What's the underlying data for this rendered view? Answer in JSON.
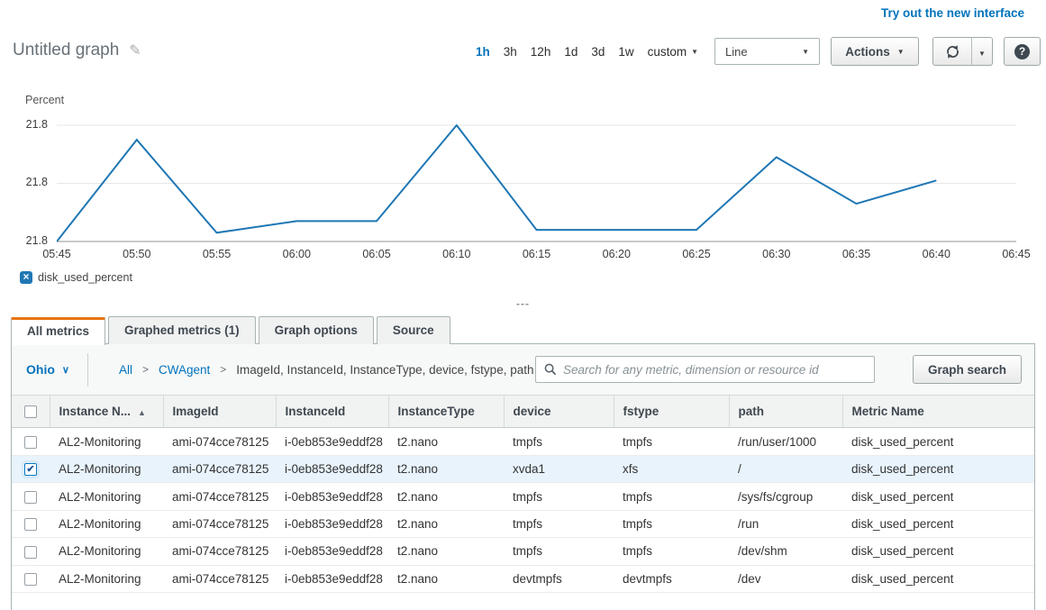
{
  "header": {
    "new_interface_link": "Try out the new interface",
    "title": "Untitled graph",
    "time_ranges": [
      "1h",
      "3h",
      "12h",
      "1d",
      "3d",
      "1w"
    ],
    "active_time_range": "1h",
    "custom_label": "custom",
    "chart_type_select": "Line",
    "actions_label": "Actions"
  },
  "icons": {
    "sort_asc": "▲",
    "caret_down": "▼",
    "check": "✔",
    "legend_remove": "×",
    "region_chevron": "∨",
    "help": "?",
    "pencil": "✎",
    "breadcrumb_sep": ">"
  },
  "chart_data": {
    "type": "line",
    "title": "Untitled graph",
    "ylabel": "Percent",
    "xlabel": "",
    "grid": true,
    "legend_position": "bottom-left",
    "y_tick_labels": [
      "21.8",
      "21.8",
      "21.8"
    ],
    "ylim": [
      21.76,
      21.8
    ],
    "x_ticks": [
      "05:45",
      "05:50",
      "05:55",
      "06:00",
      "06:05",
      "06:10",
      "06:15",
      "06:20",
      "06:25",
      "06:30",
      "06:35",
      "06:40",
      "06:45"
    ],
    "series": [
      {
        "name": "disk_used_percent",
        "color": "#1f77b4",
        "x": [
          "05:45",
          "05:50",
          "05:55",
          "06:00",
          "06:05",
          "06:10",
          "06:15",
          "06:20",
          "06:25",
          "06:30",
          "06:35",
          "06:40"
        ],
        "values": [
          21.76,
          21.795,
          21.763,
          21.767,
          21.767,
          21.8,
          21.764,
          21.764,
          21.764,
          21.789,
          21.773,
          21.781
        ]
      }
    ]
  },
  "legend": {
    "label": "disk_used_percent"
  },
  "resize_handle_label": "---",
  "tabs": [
    {
      "label": "All metrics",
      "active": true
    },
    {
      "label": "Graphed metrics (1)",
      "active": false
    },
    {
      "label": "Graph options",
      "active": false
    },
    {
      "label": "Source",
      "active": false
    }
  ],
  "metrics_panel": {
    "region": "Ohio",
    "breadcrumb": [
      "All",
      "CWAgent",
      "ImageId, InstanceId, InstanceType, device, fstype, path"
    ],
    "search_placeholder": "Search for any metric, dimension or resource id",
    "graph_search_label": "Graph search",
    "table": {
      "columns": [
        "Instance N...",
        "ImageId",
        "InstanceId",
        "InstanceType",
        "device",
        "fstype",
        "path",
        "Metric Name"
      ],
      "sort_column": "Instance N...",
      "sort_direction": "asc",
      "rows": [
        {
          "checked": false,
          "cells": [
            "AL2-Monitoring",
            "ami-074cce78125",
            "i-0eb853e9eddf28",
            "t2.nano",
            "tmpfs",
            "tmpfs",
            "/run/user/1000",
            "disk_used_percent"
          ]
        },
        {
          "checked": true,
          "cells": [
            "AL2-Monitoring",
            "ami-074cce78125",
            "i-0eb853e9eddf28",
            "t2.nano",
            "xvda1",
            "xfs",
            "/",
            "disk_used_percent"
          ]
        },
        {
          "checked": false,
          "cells": [
            "AL2-Monitoring",
            "ami-074cce78125",
            "i-0eb853e9eddf28",
            "t2.nano",
            "tmpfs",
            "tmpfs",
            "/sys/fs/cgroup",
            "disk_used_percent"
          ]
        },
        {
          "checked": false,
          "cells": [
            "AL2-Monitoring",
            "ami-074cce78125",
            "i-0eb853e9eddf28",
            "t2.nano",
            "tmpfs",
            "tmpfs",
            "/run",
            "disk_used_percent"
          ]
        },
        {
          "checked": false,
          "cells": [
            "AL2-Monitoring",
            "ami-074cce78125",
            "i-0eb853e9eddf28",
            "t2.nano",
            "tmpfs",
            "tmpfs",
            "/dev/shm",
            "disk_used_percent"
          ]
        },
        {
          "checked": false,
          "cells": [
            "AL2-Monitoring",
            "ami-074cce78125",
            "i-0eb853e9eddf28",
            "t2.nano",
            "devtmpfs",
            "devtmpfs",
            "/dev",
            "disk_used_percent"
          ]
        }
      ]
    }
  },
  "colors": {
    "link_blue": "#0073bb",
    "line_series": "#1f77b4",
    "tab_accent_orange": "#e87511",
    "selected_row": "#e8f3fc"
  }
}
